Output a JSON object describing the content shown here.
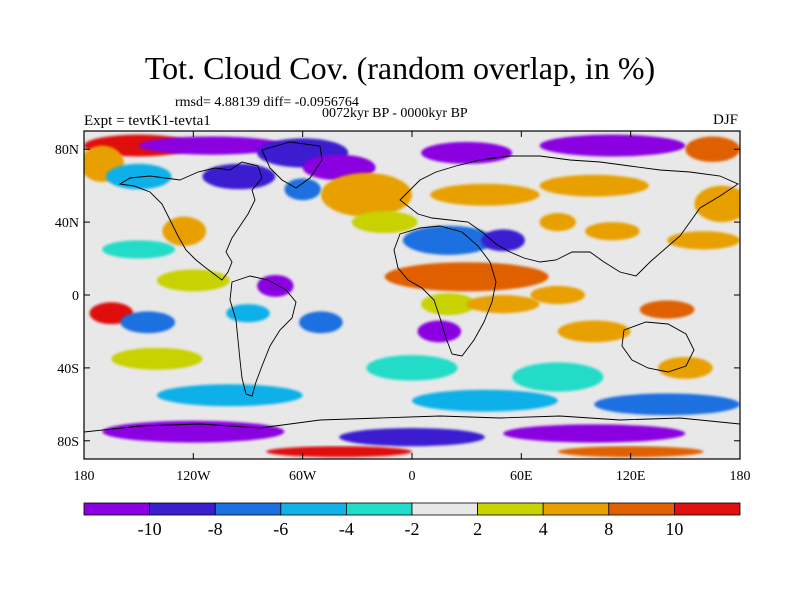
{
  "title": "Tot. Cloud Cov. (random overlap, in %)",
  "stats_line": "rmsd= 4.88139 diff= -0.0956764",
  "period_line": "0072kyr BP - 0000kyr BP",
  "experiment": "Expt = tevtK1-tevta1",
  "season": "DJF",
  "map": {
    "projection": "cylindrical equidistant",
    "lon_range": [
      -180,
      180
    ],
    "lat_range": [
      -90,
      90
    ],
    "x_ticks": [
      {
        "lon": -180,
        "label": "180"
      },
      {
        "lon": -120,
        "label": "120W"
      },
      {
        "lon": -60,
        "label": "60W"
      },
      {
        "lon": 0,
        "label": "0"
      },
      {
        "lon": 60,
        "label": "60E"
      },
      {
        "lon": 120,
        "label": "120E"
      },
      {
        "lon": 180,
        "label": "180"
      }
    ],
    "y_ticks": [
      {
        "lat": 80,
        "label": "80N"
      },
      {
        "lat": 40,
        "label": "40N"
      },
      {
        "lat": 0,
        "label": "0"
      },
      {
        "lat": -40,
        "label": "40S"
      },
      {
        "lat": -80,
        "label": "80S"
      }
    ],
    "blobs": [
      {
        "lon": -150,
        "lat": 82,
        "rx": 30,
        "ry": 6,
        "bin": 9
      },
      {
        "lon": -110,
        "lat": 82,
        "rx": 40,
        "ry": 5,
        "bin": 0
      },
      {
        "lon": -60,
        "lat": 78,
        "rx": 25,
        "ry": 8,
        "bin": 1
      },
      {
        "lon": -40,
        "lat": 70,
        "rx": 20,
        "ry": 7,
        "bin": 0
      },
      {
        "lon": 30,
        "lat": 78,
        "rx": 25,
        "ry": 6,
        "bin": 0
      },
      {
        "lon": 110,
        "lat": 82,
        "rx": 40,
        "ry": 6,
        "bin": 0
      },
      {
        "lon": 165,
        "lat": 80,
        "rx": 15,
        "ry": 7,
        "bin": 8
      },
      {
        "lon": -170,
        "lat": 72,
        "rx": 12,
        "ry": 10,
        "bin": 7
      },
      {
        "lon": -150,
        "lat": 65,
        "rx": 18,
        "ry": 7,
        "bin": 3
      },
      {
        "lon": -95,
        "lat": 65,
        "rx": 20,
        "ry": 7,
        "bin": 1
      },
      {
        "lon": -60,
        "lat": 58,
        "rx": 10,
        "ry": 6,
        "bin": 2
      },
      {
        "lon": -25,
        "lat": 55,
        "rx": 25,
        "ry": 12,
        "bin": 7
      },
      {
        "lon": -15,
        "lat": 40,
        "rx": 18,
        "ry": 6,
        "bin": 6
      },
      {
        "lon": 40,
        "lat": 55,
        "rx": 30,
        "ry": 6,
        "bin": 7
      },
      {
        "lon": 100,
        "lat": 60,
        "rx": 30,
        "ry": 6,
        "bin": 7
      },
      {
        "lon": 170,
        "lat": 50,
        "rx": 15,
        "ry": 10,
        "bin": 7
      },
      {
        "lon": -125,
        "lat": 35,
        "rx": 12,
        "ry": 8,
        "bin": 7
      },
      {
        "lon": -90,
        "lat": 40,
        "rx": 20,
        "ry": 5,
        "bin": 5
      },
      {
        "lon": -150,
        "lat": 25,
        "rx": 20,
        "ry": 5,
        "bin": 4
      },
      {
        "lon": 20,
        "lat": 30,
        "rx": 25,
        "ry": 8,
        "bin": 2
      },
      {
        "lon": 50,
        "lat": 30,
        "rx": 12,
        "ry": 6,
        "bin": 1
      },
      {
        "lon": 80,
        "lat": 40,
        "rx": 10,
        "ry": 5,
        "bin": 7
      },
      {
        "lon": 110,
        "lat": 35,
        "rx": 15,
        "ry": 5,
        "bin": 7
      },
      {
        "lon": 160,
        "lat": 30,
        "rx": 20,
        "ry": 5,
        "bin": 7
      },
      {
        "lon": -120,
        "lat": 8,
        "rx": 20,
        "ry": 6,
        "bin": 6
      },
      {
        "lon": -75,
        "lat": 5,
        "rx": 10,
        "ry": 6,
        "bin": 0
      },
      {
        "lon": -40,
        "lat": 20,
        "rx": 15,
        "ry": 5,
        "bin": 5
      },
      {
        "lon": 30,
        "lat": 10,
        "rx": 45,
        "ry": 8,
        "bin": 8
      },
      {
        "lon": 20,
        "lat": -5,
        "rx": 15,
        "ry": 6,
        "bin": 6
      },
      {
        "lon": 50,
        "lat": -5,
        "rx": 20,
        "ry": 5,
        "bin": 7
      },
      {
        "lon": 80,
        "lat": 0,
        "rx": 15,
        "ry": 5,
        "bin": 7
      },
      {
        "lon": 140,
        "lat": -8,
        "rx": 15,
        "ry": 5,
        "bin": 8
      },
      {
        "lon": 150,
        "lat": 5,
        "rx": 15,
        "ry": 4,
        "bin": 5
      },
      {
        "lon": -165,
        "lat": -10,
        "rx": 12,
        "ry": 6,
        "bin": 9
      },
      {
        "lon": -145,
        "lat": -15,
        "rx": 15,
        "ry": 6,
        "bin": 2
      },
      {
        "lon": -90,
        "lat": -10,
        "rx": 12,
        "ry": 5,
        "bin": 3
      },
      {
        "lon": -50,
        "lat": -15,
        "rx": 12,
        "ry": 6,
        "bin": 2
      },
      {
        "lon": 15,
        "lat": -20,
        "rx": 12,
        "ry": 6,
        "bin": 0
      },
      {
        "lon": 100,
        "lat": -20,
        "rx": 20,
        "ry": 6,
        "bin": 7
      },
      {
        "lon": -140,
        "lat": -35,
        "rx": 25,
        "ry": 6,
        "bin": 6
      },
      {
        "lon": 0,
        "lat": -40,
        "rx": 25,
        "ry": 7,
        "bin": 4
      },
      {
        "lon": 80,
        "lat": -45,
        "rx": 25,
        "ry": 8,
        "bin": 4
      },
      {
        "lon": 150,
        "lat": -40,
        "rx": 15,
        "ry": 6,
        "bin": 7
      },
      {
        "lon": -100,
        "lat": -55,
        "rx": 40,
        "ry": 6,
        "bin": 3
      },
      {
        "lon": 40,
        "lat": -58,
        "rx": 40,
        "ry": 6,
        "bin": 3
      },
      {
        "lon": 140,
        "lat": -60,
        "rx": 40,
        "ry": 6,
        "bin": 2
      },
      {
        "lon": -120,
        "lat": -75,
        "rx": 50,
        "ry": 6,
        "bin": 0
      },
      {
        "lon": 0,
        "lat": -78,
        "rx": 40,
        "ry": 5,
        "bin": 1
      },
      {
        "lon": 100,
        "lat": -76,
        "rx": 50,
        "ry": 5,
        "bin": 0
      },
      {
        "lon": -40,
        "lat": -86,
        "rx": 40,
        "ry": 3,
        "bin": 9
      },
      {
        "lon": 120,
        "lat": -86,
        "rx": 40,
        "ry": 3,
        "bin": 8
      }
    ]
  },
  "colorbar": {
    "colors": [
      "#8a00e0",
      "#3a1fd0",
      "#1a70e0",
      "#10b0e8",
      "#20dcc8",
      "#e8e8e8",
      "#c8d200",
      "#e8a000",
      "#e06000",
      "#e01010"
    ],
    "labels": [
      "-10",
      "-8",
      "-6",
      "-4",
      "-2",
      "2",
      "4",
      "8",
      "10"
    ]
  }
}
